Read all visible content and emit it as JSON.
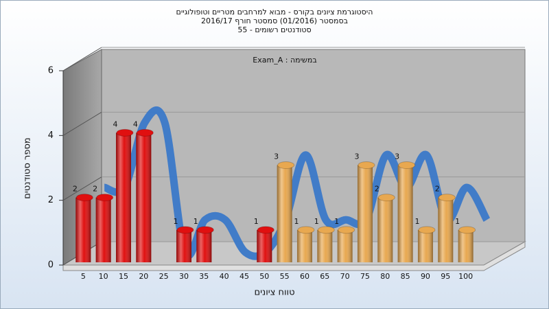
{
  "chart_data": {
    "type": "bar",
    "title": [
      "היסטוגרמת ציונים בקורס - מבוא למרחבים מטריים וטופולוגיים",
      "בסמסטר  (01/2016)  סמסטר חורף 2016/17",
      "סטודנטים רשומים - 55"
    ],
    "annotation": "Exam_A : במשימה",
    "x_label": "טווח ציונים",
    "y_label": "מספר סטודנטים",
    "categories": [
      "5",
      "10",
      "15",
      "20",
      "25",
      "30",
      "35",
      "40",
      "45",
      "50",
      "55",
      "60",
      "65",
      "70",
      "75",
      "80",
      "85",
      "90",
      "95",
      "100"
    ],
    "values": [
      2,
      2,
      4,
      4,
      0,
      1,
      1,
      0,
      0,
      1,
      3,
      1,
      1,
      1,
      3,
      2,
      3,
      1,
      2,
      1
    ],
    "colors": [
      "#e01010",
      "#e01010",
      "#e01010",
      "#e01010",
      "#e01010",
      "#e01010",
      "#e01010",
      "#e01010",
      "#e01010",
      "#e01010",
      "#e8a850",
      "#e8a850",
      "#e8a850",
      "#e8a850",
      "#e8a850",
      "#e8a850",
      "#e8a850",
      "#e8a850",
      "#e8a850",
      "#e8a850"
    ],
    "ribbon_color": "#3a78c8",
    "ylim": [
      0,
      6
    ],
    "yticks": [
      0,
      2,
      4,
      6
    ],
    "grid": true
  }
}
